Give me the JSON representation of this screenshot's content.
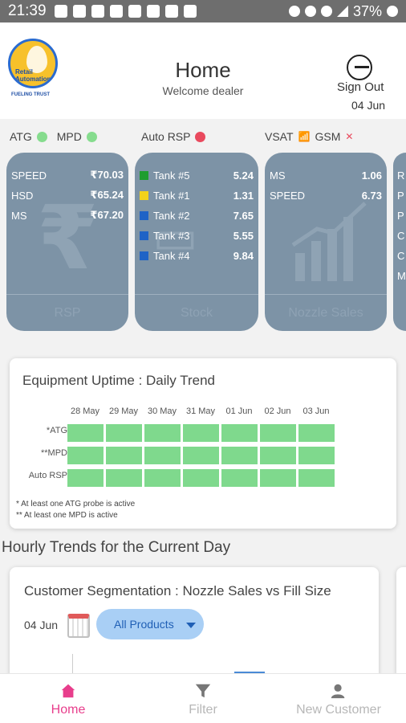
{
  "status_bar": {
    "time": "21:39",
    "battery": "37%"
  },
  "header": {
    "title": "Home",
    "subtitle": "Welcome dealer",
    "sign_out_label": "Sign Out",
    "date": "04 Jun",
    "logo_text": "Retail Automation",
    "logo_sub": "FUELING TRUST"
  },
  "indicators": {
    "atg": "ATG",
    "mpd": "MPD",
    "auto_rsp": "Auto RSP",
    "vsat": "VSAT",
    "gsm": "GSM"
  },
  "cards": {
    "rsp": {
      "footer": "RSP",
      "rows": [
        {
          "label": "SPEED",
          "value": "₹70.03"
        },
        {
          "label": "HSD",
          "value": "₹65.24"
        },
        {
          "label": "MS",
          "value": "₹67.20"
        }
      ]
    },
    "stock": {
      "footer": "Stock",
      "rows": [
        {
          "label": "Tank #5",
          "value": "5.24",
          "color": "#1f9d2f"
        },
        {
          "label": "Tank #1",
          "value": "1.31",
          "color": "#f2d21b"
        },
        {
          "label": "Tank #2",
          "value": "7.65",
          "color": "#1f63c6"
        },
        {
          "label": "Tank #3",
          "value": "5.55",
          "color": "#1f63c6"
        },
        {
          "label": "Tank #4",
          "value": "9.84",
          "color": "#1f63c6"
        }
      ]
    },
    "nozzle": {
      "footer": "Nozzle Sales",
      "rows": [
        {
          "label": "MS",
          "value": "1.06"
        },
        {
          "label": "SPEED",
          "value": "6.73"
        }
      ]
    },
    "partial_letters": [
      "R",
      "P",
      "P",
      "C",
      "C",
      "M"
    ]
  },
  "uptime": {
    "title": "Equipment Uptime : Daily Trend",
    "dates": [
      "28 May",
      "29 May",
      "30 May",
      "31 May",
      "01 Jun",
      "02 Jun",
      "03 Jun"
    ],
    "rows": [
      "*ATG",
      "**MPD",
      "Auto RSP"
    ],
    "cell_color": "#7fd98d",
    "note1": "* At least one ATG probe is active",
    "note2": "** At least one MPD is active"
  },
  "hourly": {
    "section_title": "Hourly Trends for the Current Day",
    "card_title": "Customer Segmentation : Nozzle Sales vs Fill Size",
    "date": "04 Jun",
    "dropdown_value": "All Products"
  },
  "bottom_nav": {
    "home": "Home",
    "filter": "Filter",
    "new_customer": "New Customer",
    "active_color": "#e83e8c"
  }
}
